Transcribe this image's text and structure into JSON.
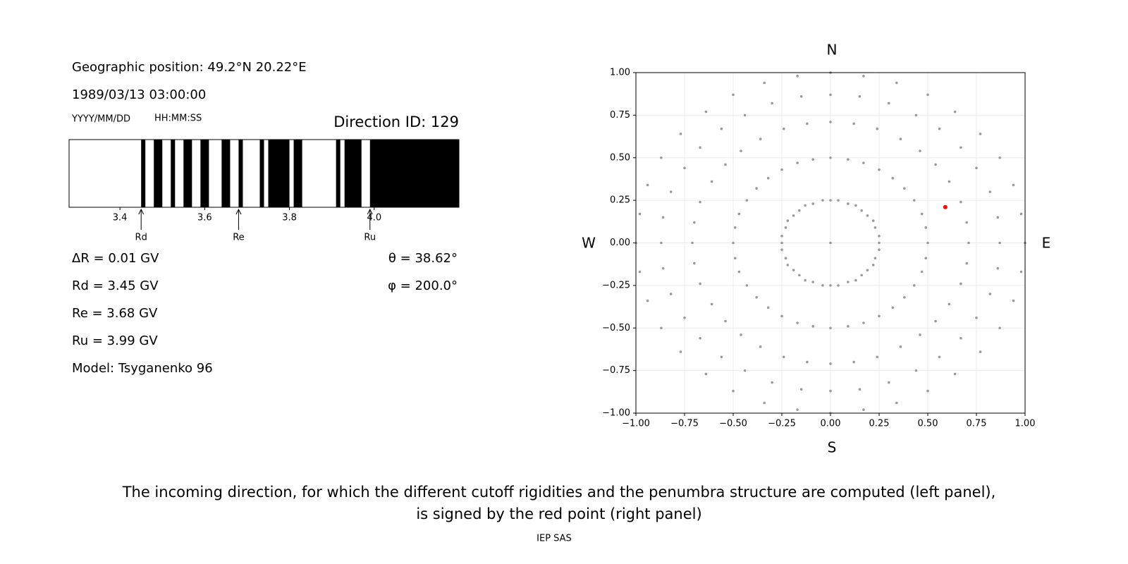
{
  "left": {
    "position": "Geographic position: 49.2°N 20.22°E",
    "datetime": "1989/03/13 03:00:00",
    "date_format": "YYYY/MM/DD",
    "time_format": "HH:MM:SS",
    "direction_id": "Direction ID: 129",
    "info": [
      "ΔR = 0.01 GV",
      "Rd = 3.45 GV",
      "Re = 3.68 GV",
      "Ru = 3.99 GV",
      "Model: Tsyganenko 96"
    ],
    "angles": [
      "θ = 38.62°",
      "φ = 200.0°"
    ]
  },
  "chart_data": [
    {
      "type": "penumbra",
      "xlim": [
        3.28,
        4.2
      ],
      "xticks": [
        3.4,
        3.6,
        3.8,
        {
          "value": 4,
          "label": "4.0"
        }
      ],
      "color": "#000000",
      "bands": [
        [
          3.45,
          3.46
        ],
        [
          3.48,
          3.5
        ],
        [
          3.52,
          3.53
        ],
        [
          3.55,
          3.57
        ],
        [
          3.59,
          3.61
        ],
        [
          3.64,
          3.66
        ],
        [
          3.68,
          3.69
        ],
        [
          3.73,
          3.74
        ],
        [
          3.75,
          3.8
        ],
        [
          3.81,
          3.83
        ],
        [
          3.91,
          3.92
        ],
        [
          3.93,
          3.97
        ],
        [
          3.99,
          4.2
        ]
      ],
      "markers": [
        {
          "label": "Rd",
          "value": 3.45
        },
        {
          "label": "Re",
          "value": 3.68
        },
        {
          "label": "Ru",
          "value": 3.99
        }
      ]
    },
    {
      "type": "scatter",
      "xlim": [
        -1,
        1
      ],
      "ylim": [
        -1,
        1
      ],
      "xticks": [
        {
          "value": -1,
          "label": "−1.00"
        },
        {
          "value": -0.75,
          "label": "−0.75"
        },
        {
          "value": -0.5,
          "label": "−0.50"
        },
        {
          "value": -0.25,
          "label": "−0.25"
        },
        {
          "value": 0,
          "label": "0.00"
        },
        {
          "value": 0.25,
          "label": "0.25"
        },
        {
          "value": 0.5,
          "label": "0.50"
        },
        {
          "value": 0.75,
          "label": "0.75"
        },
        {
          "value": 1,
          "label": "1.00"
        }
      ],
      "yticks": [
        {
          "value": -1,
          "label": "−1.00"
        },
        {
          "value": -0.75,
          "label": "−0.75"
        },
        {
          "value": -0.5,
          "label": "−0.50"
        },
        {
          "value": -0.25,
          "label": "−0.25"
        },
        {
          "value": 0,
          "label": "0.00"
        },
        {
          "value": 0.25,
          "label": "0.25"
        },
        {
          "value": 0.5,
          "label": "0.50"
        },
        {
          "value": 0.75,
          "label": "0.75"
        },
        {
          "value": 1,
          "label": "1.00"
        }
      ],
      "grid": true,
      "compass": {
        "N": "N",
        "S": "S",
        "E": "E",
        "W": "W"
      },
      "series": [
        {
          "color": "#999999",
          "x": [
            0
          ],
          "y": [
            0
          ]
        },
        {
          "color": "#999999",
          "x": [
            0,
            0.04,
            0.09,
            0.13,
            0.16,
            0.19,
            0.22,
            0.23,
            0.25,
            0.25,
            0.25,
            0.23,
            0.22,
            0.19,
            0.16,
            0.13,
            0.09,
            0.04,
            0,
            -0.04,
            -0.09,
            -0.13,
            -0.16,
            -0.19,
            -0.22,
            -0.23,
            -0.25,
            -0.25,
            -0.25,
            -0.23,
            -0.22,
            -0.19,
            -0.16,
            -0.13,
            -0.09,
            -0.04
          ],
          "y": [
            0.25,
            0.25,
            0.23,
            0.22,
            0.19,
            0.16,
            0.13,
            0.09,
            0.04,
            0,
            -0.04,
            -0.09,
            -0.13,
            -0.16,
            -0.19,
            -0.22,
            -0.23,
            -0.25,
            -0.25,
            -0.25,
            -0.23,
            -0.22,
            -0.19,
            -0.16,
            -0.13,
            -0.09,
            -0.04,
            0,
            0.04,
            0.09,
            0.13,
            0.16,
            0.19,
            0.22,
            0.23,
            0.25
          ]
        },
        {
          "color": "#999999",
          "x": [
            0,
            0.09,
            0.17,
            0.25,
            0.32,
            0.38,
            0.43,
            0.47,
            0.49,
            0.5,
            0.49,
            0.47,
            0.43,
            0.38,
            0.32,
            0.25,
            0.17,
            0.09,
            0,
            -0.09,
            -0.17,
            -0.25,
            -0.32,
            -0.38,
            -0.43,
            -0.47,
            -0.49,
            -0.5,
            -0.49,
            -0.47,
            -0.43,
            -0.38,
            -0.32,
            -0.25,
            -0.17,
            -0.09
          ],
          "y": [
            0.5,
            0.49,
            0.47,
            0.43,
            0.38,
            0.32,
            0.25,
            0.17,
            0.09,
            0,
            -0.09,
            -0.17,
            -0.25,
            -0.32,
            -0.38,
            -0.43,
            -0.47,
            -0.49,
            -0.5,
            -0.49,
            -0.47,
            -0.43,
            -0.38,
            -0.32,
            -0.25,
            -0.17,
            -0.09,
            0,
            0.09,
            0.17,
            0.25,
            0.32,
            0.38,
            0.43,
            0.47,
            0.49
          ]
        },
        {
          "color": "#999999",
          "x": [
            0,
            0.12,
            0.24,
            0.36,
            0.46,
            0.54,
            0.61,
            0.67,
            0.7,
            0.71,
            0.7,
            0.67,
            0.61,
            0.54,
            0.46,
            0.36,
            0.24,
            0.12,
            0,
            -0.12,
            -0.24,
            -0.36,
            -0.46,
            -0.54,
            -0.61,
            -0.67,
            -0.7,
            -0.71,
            -0.7,
            -0.67,
            -0.61,
            -0.54,
            -0.46,
            -0.36,
            -0.24,
            -0.12
          ],
          "y": [
            0.71,
            0.7,
            0.67,
            0.61,
            0.54,
            0.46,
            0.36,
            0.24,
            0.12,
            0,
            -0.12,
            -0.24,
            -0.36,
            -0.46,
            -0.54,
            -0.61,
            -0.67,
            -0.7,
            -0.71,
            -0.7,
            -0.67,
            -0.61,
            -0.54,
            -0.46,
            -0.36,
            -0.24,
            -0.12,
            0,
            0.12,
            0.24,
            0.36,
            0.46,
            0.54,
            0.61,
            0.67,
            0.7
          ]
        },
        {
          "color": "#999999",
          "x": [
            0,
            0.15,
            0.3,
            0.44,
            0.56,
            0.67,
            0.75,
            0.82,
            0.86,
            0.87,
            0.86,
            0.82,
            0.75,
            0.67,
            0.56,
            0.44,
            0.3,
            0.15,
            0,
            -0.15,
            -0.3,
            -0.44,
            -0.56,
            -0.67,
            -0.75,
            -0.82,
            -0.86,
            -0.87,
            -0.86,
            -0.82,
            -0.75,
            -0.67,
            -0.56,
            -0.44,
            -0.3,
            -0.15
          ],
          "y": [
            0.87,
            0.86,
            0.82,
            0.75,
            0.67,
            0.56,
            0.44,
            0.3,
            0.15,
            0,
            -0.15,
            -0.3,
            -0.44,
            -0.56,
            -0.67,
            -0.75,
            -0.82,
            -0.86,
            -0.87,
            -0.86,
            -0.82,
            -0.75,
            -0.67,
            -0.56,
            -0.44,
            -0.3,
            -0.15,
            0,
            0.15,
            0.3,
            0.44,
            0.56,
            0.67,
            0.75,
            0.82,
            0.86
          ]
        },
        {
          "color": "#999999",
          "x": [
            0,
            0.17,
            0.34,
            0.5,
            0.64,
            0.77,
            0.87,
            0.94,
            0.98,
            1,
            0.98,
            0.94,
            0.87,
            0.77,
            0.64,
            0.5,
            0.34,
            0.17,
            0,
            -0.17,
            -0.34,
            -0.5,
            -0.64,
            -0.77,
            -0.87,
            -0.94,
            -0.98,
            -1,
            -0.98,
            -0.94,
            -0.87,
            -0.77,
            -0.64,
            -0.5,
            -0.34,
            -0.17
          ],
          "y": [
            1,
            0.98,
            0.94,
            0.87,
            0.77,
            0.64,
            0.5,
            0.34,
            0.17,
            0,
            -0.17,
            -0.34,
            -0.5,
            -0.64,
            -0.77,
            -0.87,
            -0.94,
            -0.98,
            -1,
            -0.98,
            -0.94,
            -0.87,
            -0.77,
            -0.64,
            -0.5,
            -0.34,
            -0.17,
            0,
            0.17,
            0.34,
            0.5,
            0.64,
            0.77,
            0.87,
            0.94,
            0.98
          ]
        },
        {
          "color": "#ff0000",
          "x": [
            0.59
          ],
          "y": [
            0.21
          ],
          "highlight": true
        }
      ]
    }
  ],
  "caption": [
    "The incoming direction, for which the different cutoff rigidities and the penumbra structure are computed (left panel),",
    "is signed by the red point (right panel)"
  ],
  "footer": "IEP SAS"
}
